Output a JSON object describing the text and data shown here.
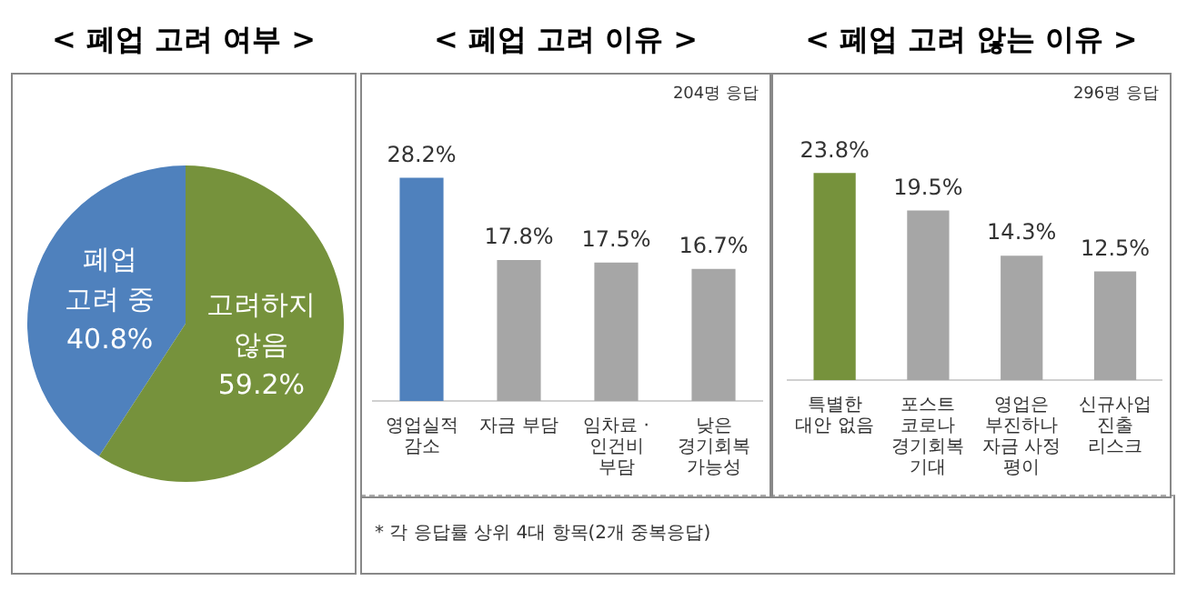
{
  "chart_data": [
    {
      "type": "pie",
      "title": "< 폐업 고려 여부 >",
      "categories": [
        "폐업\n고려 중",
        "고려하지\n않음"
      ],
      "values": [
        40.8,
        59.2
      ],
      "value_labels": [
        "40.8%",
        "59.2%"
      ],
      "colors": [
        "#4f81bd",
        "#76923c"
      ],
      "legend": false
    },
    {
      "type": "bar",
      "title": "< 폐업 고려 이유 >",
      "categories": [
        "영업실적 감소",
        "자금 부담",
        "임차료 · 인건비 부담",
        "낮은 경기회복 가능성"
      ],
      "values": [
        28.2,
        17.8,
        17.5,
        16.7
      ],
      "colors": [
        "#4f81bd",
        "#a6a6a6",
        "#a6a6a6",
        "#a6a6a6"
      ],
      "value_labels": [
        "28.2%",
        "17.8%",
        "17.5%",
        "16.7%"
      ],
      "annotations": [
        "204명 응답",
        "* 각 응답률 상위 4대 항목(2개 중복응답)"
      ],
      "grid": false,
      "legend": false
    },
    {
      "type": "bar",
      "title": "< 폐업 고려 않는 이유 >",
      "categories": [
        "특별한 대안 없음",
        "포스트 코로나 경기회복 기대",
        "영업은 부진하나 자금 사정 평이",
        "신규사업 진출 리스크"
      ],
      "values": [
        23.8,
        19.5,
        14.3,
        12.5
      ],
      "colors": [
        "#76923c",
        "#a6a6a6",
        "#a6a6a6",
        "#a6a6a6"
      ],
      "value_labels": [
        "23.8%",
        "19.5%",
        "14.3%",
        "12.5%"
      ],
      "annotations": [
        "296명 응답"
      ],
      "grid": false,
      "legend": false
    }
  ]
}
